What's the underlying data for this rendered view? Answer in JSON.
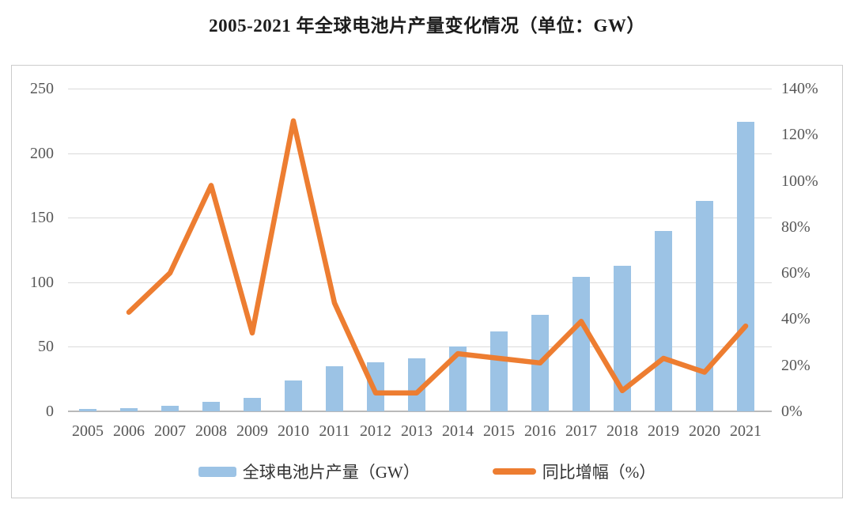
{
  "chart_data": {
    "type": "bar+line combo",
    "title": "2005-2021 年全球电池片产量变化情况（单位：GW）",
    "categories": [
      "2005",
      "2006",
      "2007",
      "2008",
      "2009",
      "2010",
      "2011",
      "2012",
      "2013",
      "2014",
      "2015",
      "2016",
      "2017",
      "2018",
      "2019",
      "2020",
      "2021"
    ],
    "series": [
      {
        "name": "全球电池片产量（GW）",
        "type": "bar",
        "axis": "left",
        "color": "#9CC3E5",
        "values": [
          1.8,
          2.6,
          4,
          7.5,
          10.5,
          24,
          35,
          38,
          41,
          50,
          62,
          75,
          104,
          113,
          140,
          163,
          224
        ]
      },
      {
        "name": "同比增幅（%）",
        "type": "line",
        "axis": "right",
        "color": "#ED7D31",
        "values": [
          null,
          43,
          60,
          98,
          34,
          126,
          47,
          8,
          8,
          25,
          23,
          21,
          39,
          9,
          23,
          17,
          37
        ]
      }
    ],
    "left_axis": {
      "min": 0,
      "max": 250,
      "step": 50,
      "tick_values": [
        0,
        50,
        100,
        150,
        200,
        250
      ],
      "tick_labels": [
        "0",
        "50",
        "100",
        "150",
        "200",
        "250"
      ]
    },
    "right_axis": {
      "min": 0,
      "max": 140,
      "step": 20,
      "tick_values": [
        0,
        20,
        40,
        60,
        80,
        100,
        120,
        140
      ],
      "tick_labels": [
        "0%",
        "20%",
        "40%",
        "60%",
        "80%",
        "100%",
        "120%",
        "140%"
      ]
    },
    "grid": true,
    "legend_position": "bottom",
    "colors": {
      "bar_fill": "#9CC3E5",
      "line_stroke": "#ED7D31",
      "gridline": "#dadada",
      "baseline": "#b9b9b9",
      "axis_text": "#575757",
      "title_text": "#1c1c1c",
      "box_border": "#cccccc",
      "background": "#ffffff"
    }
  }
}
